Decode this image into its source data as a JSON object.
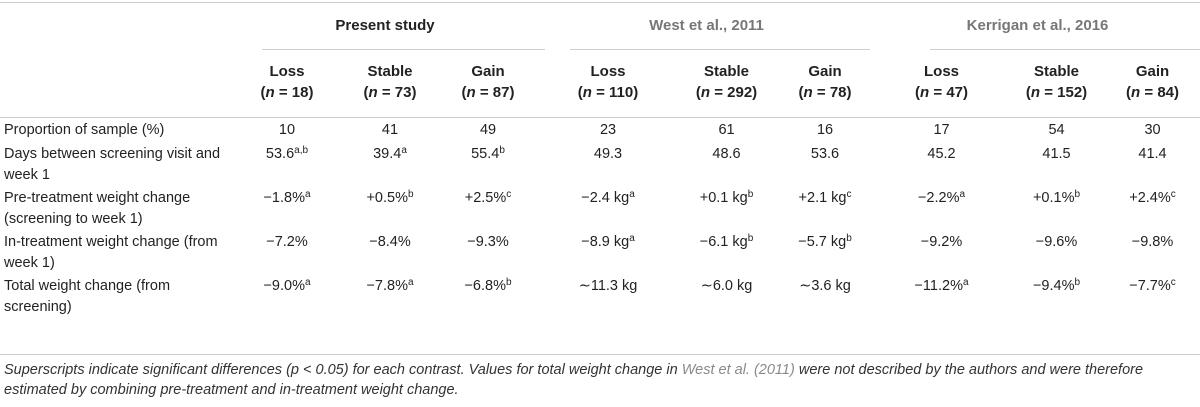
{
  "groups": [
    "Present study",
    "West et al., 2011",
    "Kerrigan et al., 2016"
  ],
  "subheaders": [
    {
      "label": "Loss",
      "n": "18"
    },
    {
      "label": "Stable",
      "n": "73"
    },
    {
      "label": "Gain",
      "n": "87"
    },
    {
      "label": "Loss",
      "n": "110"
    },
    {
      "label": "Stable",
      "n": "292"
    },
    {
      "label": "Gain",
      "n": "78"
    },
    {
      "label": "Loss",
      "n": "47"
    },
    {
      "label": "Stable",
      "n": "152"
    },
    {
      "label": "Gain",
      "n": "84"
    }
  ],
  "n_prefix": "(",
  "n_var": "n",
  "n_eq": " = ",
  "n_suffix": ")",
  "rows": [
    {
      "label": "Proportion of sample (%)",
      "cells": [
        {
          "v": "10",
          "s": ""
        },
        {
          "v": "41",
          "s": ""
        },
        {
          "v": "49",
          "s": ""
        },
        {
          "v": "23",
          "s": ""
        },
        {
          "v": "61",
          "s": ""
        },
        {
          "v": "16",
          "s": ""
        },
        {
          "v": "17",
          "s": ""
        },
        {
          "v": "54",
          "s": ""
        },
        {
          "v": "30",
          "s": ""
        }
      ]
    },
    {
      "label": "Days between screening visit and week 1",
      "cells": [
        {
          "v": "53.6",
          "s": "a,b"
        },
        {
          "v": "39.4",
          "s": "a"
        },
        {
          "v": "55.4",
          "s": "b"
        },
        {
          "v": "49.3",
          "s": ""
        },
        {
          "v": "48.6",
          "s": ""
        },
        {
          "v": "53.6",
          "s": ""
        },
        {
          "v": "45.2",
          "s": ""
        },
        {
          "v": "41.5",
          "s": ""
        },
        {
          "v": "41.4",
          "s": ""
        }
      ]
    },
    {
      "label": "Pre-treatment weight change (screening to week 1)",
      "cells": [
        {
          "v": "−1.8%",
          "s": "a"
        },
        {
          "v": "+0.5%",
          "s": "b"
        },
        {
          "v": "+2.5%",
          "s": "c"
        },
        {
          "v": "−2.4 kg",
          "s": "a"
        },
        {
          "v": "+0.1 kg",
          "s": "b"
        },
        {
          "v": "+2.1 kg",
          "s": "c"
        },
        {
          "v": "−2.2%",
          "s": "a"
        },
        {
          "v": "+0.1%",
          "s": "b"
        },
        {
          "v": "+2.4%",
          "s": "c"
        }
      ]
    },
    {
      "label": "In-treatment weight change (from week 1)",
      "cells": [
        {
          "v": "−7.2%",
          "s": ""
        },
        {
          "v": "−8.4%",
          "s": ""
        },
        {
          "v": "−9.3%",
          "s": ""
        },
        {
          "v": "−8.9 kg",
          "s": "a"
        },
        {
          "v": "−6.1 kg",
          "s": "b"
        },
        {
          "v": "−5.7 kg",
          "s": "b"
        },
        {
          "v": "−9.2%",
          "s": ""
        },
        {
          "v": "−9.6%",
          "s": ""
        },
        {
          "v": "−9.8%",
          "s": ""
        }
      ]
    },
    {
      "label": "Total weight change (from screening)",
      "cells": [
        {
          "v": "−9.0%",
          "s": "a"
        },
        {
          "v": "−7.8%",
          "s": "a"
        },
        {
          "v": "−6.8%",
          "s": "b"
        },
        {
          "v": "∼11.3 kg",
          "s": ""
        },
        {
          "v": "∼6.0 kg",
          "s": ""
        },
        {
          "v": "∼3.6 kg",
          "s": ""
        },
        {
          "v": "−11.2%",
          "s": "a"
        },
        {
          "v": "−9.4%",
          "s": "b"
        },
        {
          "v": "−7.7%",
          "s": "c"
        }
      ]
    }
  ],
  "footnote": {
    "part1": "Superscripts indicate significant differences (p < 0.05) for each contrast. Values for total weight change in ",
    "ref": "West et al. (2011)",
    "part2": " were not described by the authors and were therefore estimated by combining pre-treatment and in-treatment weight change."
  }
}
